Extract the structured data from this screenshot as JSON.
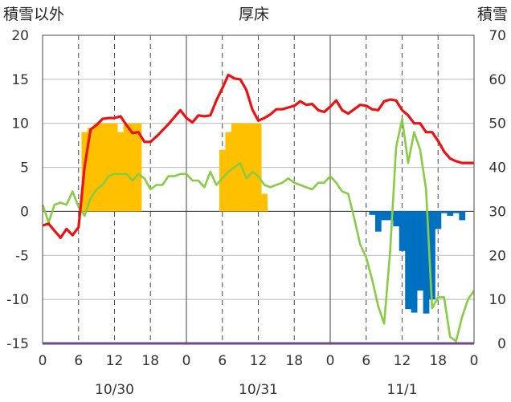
{
  "chart_data": {
    "type": "bar+line",
    "title": "厚床",
    "left_axis_label": "積雪以外",
    "right_axis_label": "積雪",
    "left_ylim": [
      -15,
      20
    ],
    "left_ticks": [
      "20",
      "15",
      "10",
      "5",
      "0",
      "-5",
      "-10",
      "-15"
    ],
    "right_ylim": [
      0,
      70
    ],
    "right_ticks": [
      "70",
      "60",
      "50",
      "40",
      "30",
      "20",
      "10",
      "0"
    ],
    "x_range_hours": [
      0,
      72
    ],
    "x_tick_labels": [
      "0",
      "6",
      "12",
      "18",
      "0",
      "6",
      "12",
      "18",
      "0",
      "6",
      "12",
      "18",
      "0"
    ],
    "date_labels": [
      "10/30",
      "10/31",
      "11/1"
    ],
    "grid": "vertical dashed every 6h, solid at day boundaries; horizontal gridlines at each 5 units",
    "colors": {
      "temperature": "#ee1111",
      "snow_depth": "#88cc44",
      "sunshine": "#ffc000",
      "precipitation": "#0070c0",
      "baseline": "#7030a0"
    },
    "sunshine_bars": {
      "hours": [
        7,
        8,
        9,
        10,
        11,
        12,
        13,
        14,
        15,
        16,
        30,
        31,
        32,
        33,
        34,
        35,
        36,
        37
      ],
      "values": [
        9,
        9.5,
        10,
        10,
        10,
        10,
        9,
        10,
        10,
        10,
        7,
        9,
        10,
        10,
        10,
        10,
        10,
        2
      ]
    },
    "precip_bars": {
      "hours": [
        55,
        56,
        57,
        58,
        59,
        60,
        61,
        62,
        63,
        64,
        65,
        66,
        67,
        68,
        69,
        70
      ],
      "values": [
        -0.4,
        -2.3,
        -1.0,
        -1.0,
        -1.7,
        -4.5,
        -11.1,
        -11.5,
        -9.0,
        -11.6,
        -10.0,
        -2.0,
        -0.2,
        -0.5,
        -0.2,
        -1.0
      ]
    },
    "temperature_line": {
      "x": [
        0,
        1,
        2,
        3,
        4,
        5,
        6,
        7,
        8,
        9,
        10,
        11,
        12,
        13,
        14,
        15,
        16,
        17,
        18,
        19,
        20,
        21,
        22,
        23,
        24,
        25,
        26,
        27,
        28,
        29,
        30,
        31,
        32,
        33,
        34,
        35,
        36,
        37,
        38,
        39,
        40,
        41,
        42,
        43,
        44,
        45,
        46,
        47,
        48,
        49,
        50,
        51,
        52,
        53,
        54,
        55,
        56,
        57,
        58,
        59,
        60,
        61,
        62,
        63,
        64,
        65,
        66,
        67,
        68,
        69,
        70,
        71,
        72
      ],
      "y": [
        -1.6,
        -1.4,
        -2.2,
        -3.0,
        -2.0,
        -2.7,
        -1.8,
        5.0,
        9.3,
        9.8,
        10.5,
        10.6,
        10.6,
        10.8,
        9.8,
        8.9,
        9.0,
        7.9,
        7.9,
        8.5,
        9.2,
        9.9,
        10.7,
        11.5,
        10.6,
        10.1,
        10.9,
        10.8,
        10.9,
        12.6,
        14.0,
        15.5,
        15.1,
        15.0,
        13.8,
        11.6,
        10.3,
        10.6,
        11.0,
        11.6,
        11.6,
        11.8,
        12.0,
        12.5,
        12.1,
        12.2,
        11.5,
        11.3,
        11.9,
        12.6,
        11.5,
        11.1,
        11.6,
        12.1,
        12.0,
        11.6,
        11.5,
        12.5,
        12.7,
        12.6,
        11.5,
        10.9,
        10.0,
        10.0,
        9.0,
        9.0,
        8.0,
        6.8,
        6.0,
        5.7,
        5.5,
        5.5,
        5.5
      ]
    },
    "snow_depth_line": {
      "x": [
        0,
        1,
        2,
        3,
        4,
        5,
        6,
        7,
        8,
        9,
        10,
        11,
        12,
        13,
        14,
        15,
        16,
        17,
        18,
        19,
        20,
        21,
        22,
        23,
        24,
        25,
        26,
        27,
        28,
        29,
        30,
        31,
        32,
        33,
        34,
        35,
        36,
        37,
        38,
        39,
        40,
        41,
        42,
        43,
        44,
        45,
        46,
        47,
        48,
        49,
        50,
        51,
        52,
        53,
        54,
        55,
        56,
        57,
        58,
        59,
        60,
        61,
        62,
        63,
        64,
        65,
        66,
        67,
        68,
        69,
        70,
        71,
        72
      ],
      "y": [
        31.5,
        27.5,
        31.5,
        32.0,
        31.5,
        34.5,
        31.0,
        29.0,
        33.0,
        35.0,
        36.0,
        38.0,
        38.5,
        38.5,
        38.5,
        37.0,
        38.5,
        37.5,
        35.0,
        36.0,
        36.0,
        38.0,
        38.0,
        38.5,
        38.5,
        37.0,
        37.0,
        35.5,
        39.0,
        36.0,
        37.5,
        39.0,
        40.0,
        41.0,
        37.5,
        39.0,
        38.0,
        36.0,
        35.5,
        36.0,
        36.5,
        37.5,
        36.5,
        36.0,
        35.5,
        35.0,
        36.5,
        36.5,
        38.0,
        36.5,
        34.5,
        34.0,
        28.5,
        22.5,
        19.5,
        14.5,
        8.5,
        4.5,
        21.0,
        44.5,
        51.0,
        41.0,
        48.0,
        44.0,
        35.0,
        8.0,
        10.5,
        10.5,
        1.5,
        0.5,
        6.0,
        10.0,
        12.0
      ]
    }
  }
}
